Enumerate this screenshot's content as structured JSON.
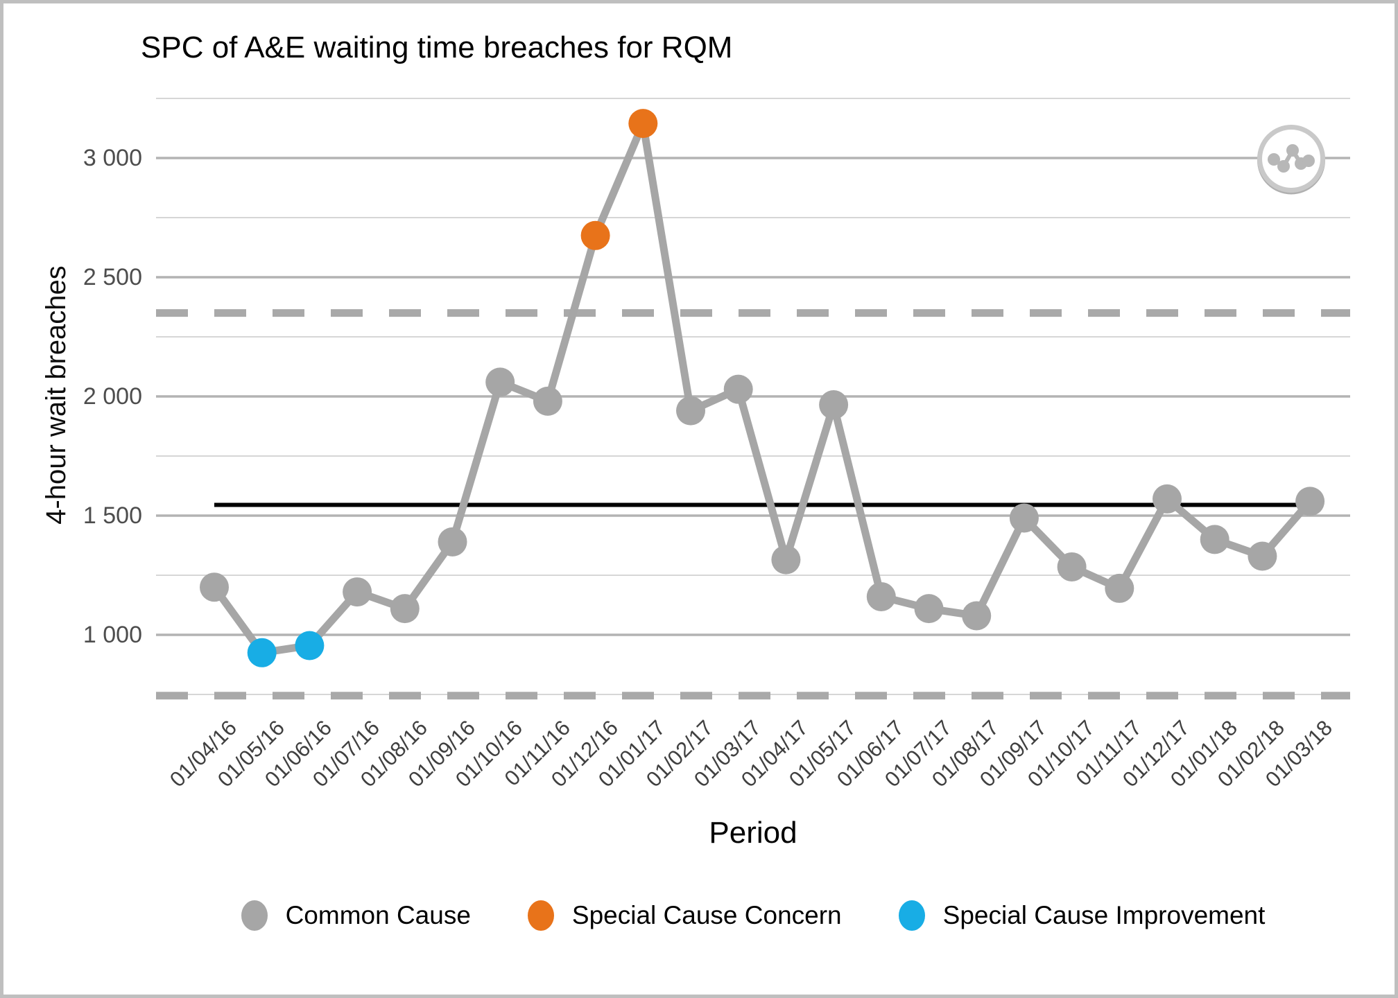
{
  "title": "SPC of A&E waiting time breaches for RQM",
  "y_axis": {
    "label": "4-hour wait breaches",
    "ticks": [
      {
        "label": "3 000",
        "value": 3000
      },
      {
        "label": "2 500",
        "value": 2500
      },
      {
        "label": "2 000",
        "value": 2000
      },
      {
        "label": "1 500",
        "value": 1500
      },
      {
        "label": "1 000",
        "value": 1000
      }
    ]
  },
  "x_axis": {
    "label": "Period"
  },
  "legend": {
    "items": [
      {
        "label": "Common Cause",
        "color": "#a6a6a6",
        "type": "common"
      },
      {
        "label": "Special Cause Concern",
        "color": "#e8731a",
        "type": "concern"
      },
      {
        "label": "Special Cause Improvement",
        "color": "#18ade5",
        "type": "improvement"
      }
    ]
  },
  "colors": {
    "common": "#a6a6a6",
    "concern": "#e8731a",
    "improvement": "#18ade5",
    "series_line": "#a6a6a6",
    "mean_line": "#000000",
    "limit_line": "#a9a9a9",
    "grid_major": "#b3b3b3",
    "grid_minor": "#d6d6d6",
    "frame_border": "#bfbfbf",
    "tick_text": "#4d4d4d"
  },
  "icon": {
    "name": "line-chart-badge-icon"
  },
  "chart_data": {
    "type": "line",
    "title": "SPC of A&E waiting time breaches for RQM",
    "xlabel": "Period",
    "ylabel": "4-hour wait breaches",
    "x": [
      "01/04/16",
      "01/05/16",
      "01/06/16",
      "01/07/16",
      "01/08/16",
      "01/09/16",
      "01/10/16",
      "01/11/16",
      "01/12/16",
      "01/01/17",
      "01/02/17",
      "01/03/17",
      "01/04/17",
      "01/05/17",
      "01/06/17",
      "01/07/17",
      "01/08/17",
      "01/09/17",
      "01/10/17",
      "01/11/17",
      "01/12/17",
      "01/01/18",
      "01/02/18",
      "01/03/18"
    ],
    "series": [
      {
        "name": "4-hour wait breaches",
        "values": [
          1200,
          925,
          955,
          1180,
          1110,
          1390,
          2060,
          1980,
          2675,
          3145,
          1940,
          2030,
          1315,
          1965,
          1160,
          1110,
          1080,
          1490,
          1285,
          1195,
          1570,
          1400,
          1330,
          1560
        ]
      }
    ],
    "point_types": [
      "common",
      "improvement",
      "improvement",
      "common",
      "common",
      "common",
      "common",
      "common",
      "concern",
      "concern",
      "common",
      "common",
      "common",
      "common",
      "common",
      "common",
      "common",
      "common",
      "common",
      "common",
      "common",
      "common",
      "common",
      "common"
    ],
    "mean": 1545,
    "ucl": 2350,
    "lcl": 745,
    "y_major_gridlines": [
      1000,
      1500,
      2000,
      2500,
      3000
    ],
    "y_minor_gridlines": [
      750,
      1250,
      1750,
      2250,
      2750,
      3250
    ],
    "ylim": [
      620,
      3330
    ],
    "grid": "horizontal",
    "legend_position": "bottom"
  }
}
